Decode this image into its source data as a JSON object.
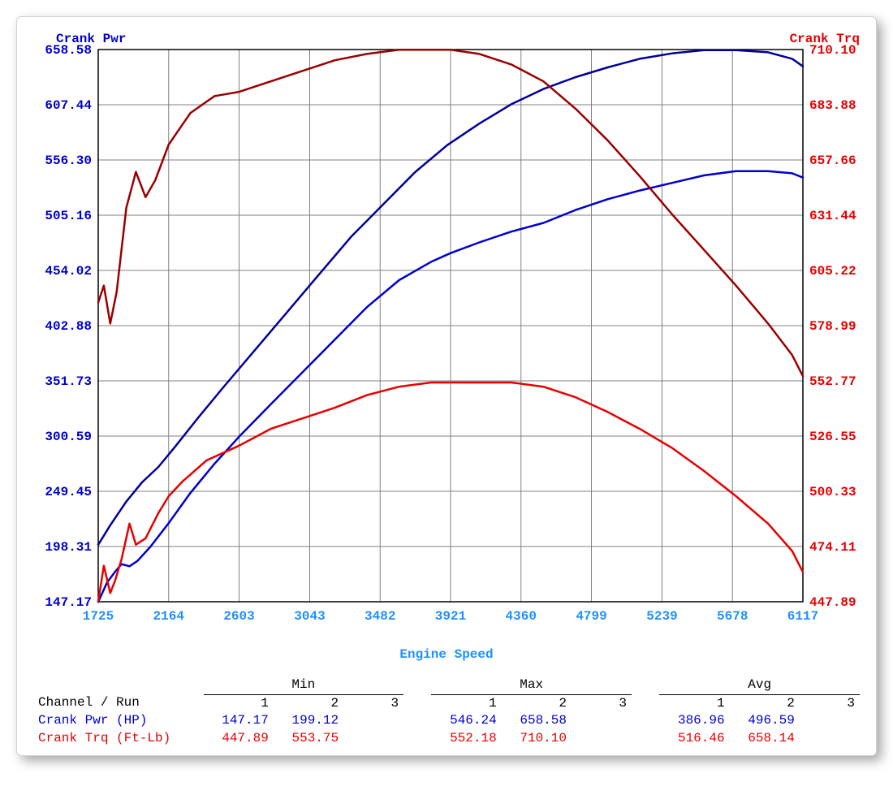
{
  "chart": {
    "background_color": "#ffffff",
    "grid_color": "#808080",
    "plot_border_color": "#000000",
    "font_family": "Courier New, monospace",
    "tick_fontsize": 16,
    "title_fontsize": 16,
    "line_width": 2.5,
    "x_axis": {
      "label": "Engine Speed",
      "color": "#1e90ff",
      "min": 1725,
      "max": 6117,
      "ticks": [
        1725,
        2164,
        2603,
        3043,
        3482,
        3921,
        4360,
        4799,
        5239,
        5678,
        6117
      ]
    },
    "y_left": {
      "label": "Crank Pwr",
      "color": "#0000cc",
      "min": 147.17,
      "max": 658.58,
      "ticks": [
        147.17,
        198.31,
        249.45,
        300.59,
        351.73,
        402.88,
        454.02,
        505.16,
        556.3,
        607.44,
        658.58
      ]
    },
    "y_right": {
      "label": "Crank Trq",
      "color": "#e60000",
      "min": 447.89,
      "max": 710.1,
      "ticks": [
        447.89,
        474.11,
        500.33,
        526.55,
        552.77,
        578.99,
        605.22,
        631.44,
        657.66,
        683.88,
        710.1
      ]
    },
    "series": [
      {
        "name": "Crank Pwr Run 1",
        "axis": "left",
        "color": "#0000cc",
        "points": [
          [
            1725,
            147
          ],
          [
            1780,
            165
          ],
          [
            1830,
            175
          ],
          [
            1870,
            182
          ],
          [
            1920,
            180
          ],
          [
            1970,
            185
          ],
          [
            2050,
            198
          ],
          [
            2164,
            220
          ],
          [
            2300,
            248
          ],
          [
            2450,
            275
          ],
          [
            2603,
            300
          ],
          [
            2800,
            330
          ],
          [
            3000,
            360
          ],
          [
            3200,
            390
          ],
          [
            3400,
            420
          ],
          [
            3600,
            445
          ],
          [
            3800,
            462
          ],
          [
            3921,
            470
          ],
          [
            4100,
            480
          ],
          [
            4300,
            490
          ],
          [
            4500,
            498
          ],
          [
            4700,
            510
          ],
          [
            4900,
            520
          ],
          [
            5100,
            528
          ],
          [
            5300,
            535
          ],
          [
            5500,
            542
          ],
          [
            5700,
            546
          ],
          [
            5900,
            546
          ],
          [
            6050,
            544
          ],
          [
            6117,
            540
          ]
        ]
      },
      {
        "name": "Crank Pwr Run 2",
        "axis": "left",
        "color": "#000099",
        "points": [
          [
            1725,
            200
          ],
          [
            1800,
            218
          ],
          [
            1900,
            240
          ],
          [
            2000,
            258
          ],
          [
            2100,
            272
          ],
          [
            2200,
            290
          ],
          [
            2350,
            318
          ],
          [
            2500,
            345
          ],
          [
            2700,
            380
          ],
          [
            2900,
            415
          ],
          [
            3100,
            450
          ],
          [
            3300,
            485
          ],
          [
            3500,
            515
          ],
          [
            3700,
            545
          ],
          [
            3900,
            570
          ],
          [
            4100,
            590
          ],
          [
            4300,
            608
          ],
          [
            4500,
            622
          ],
          [
            4700,
            633
          ],
          [
            4900,
            642
          ],
          [
            5100,
            650
          ],
          [
            5300,
            655
          ],
          [
            5500,
            658
          ],
          [
            5700,
            658
          ],
          [
            5900,
            656
          ],
          [
            6050,
            650
          ],
          [
            6117,
            643
          ]
        ]
      },
      {
        "name": "Crank Trq Run 1",
        "axis": "right",
        "color": "#e60000",
        "points": [
          [
            1725,
            448
          ],
          [
            1760,
            465
          ],
          [
            1800,
            452
          ],
          [
            1830,
            458
          ],
          [
            1870,
            468
          ],
          [
            1920,
            485
          ],
          [
            1960,
            475
          ],
          [
            2020,
            478
          ],
          [
            2100,
            490
          ],
          [
            2164,
            498
          ],
          [
            2250,
            505
          ],
          [
            2400,
            515
          ],
          [
            2603,
            522
          ],
          [
            2800,
            530
          ],
          [
            3000,
            535
          ],
          [
            3200,
            540
          ],
          [
            3400,
            546
          ],
          [
            3600,
            550
          ],
          [
            3800,
            552
          ],
          [
            3921,
            552
          ],
          [
            4100,
            552
          ],
          [
            4300,
            552
          ],
          [
            4500,
            550
          ],
          [
            4700,
            545
          ],
          [
            4900,
            538
          ],
          [
            5100,
            530
          ],
          [
            5300,
            521
          ],
          [
            5500,
            510
          ],
          [
            5700,
            498
          ],
          [
            5900,
            485
          ],
          [
            6050,
            472
          ],
          [
            6117,
            462
          ]
        ]
      },
      {
        "name": "Crank Trq Run 2",
        "axis": "right",
        "color": "#990000",
        "points": [
          [
            1725,
            590
          ],
          [
            1760,
            598
          ],
          [
            1800,
            580
          ],
          [
            1840,
            595
          ],
          [
            1900,
            635
          ],
          [
            1960,
            652
          ],
          [
            2020,
            640
          ],
          [
            2080,
            648
          ],
          [
            2164,
            665
          ],
          [
            2300,
            680
          ],
          [
            2450,
            688
          ],
          [
            2603,
            690
          ],
          [
            2800,
            695
          ],
          [
            3000,
            700
          ],
          [
            3200,
            705
          ],
          [
            3400,
            708
          ],
          [
            3600,
            710
          ],
          [
            3800,
            710
          ],
          [
            3921,
            710
          ],
          [
            4100,
            708
          ],
          [
            4300,
            703
          ],
          [
            4500,
            695
          ],
          [
            4700,
            682
          ],
          [
            4900,
            667
          ],
          [
            5100,
            650
          ],
          [
            5300,
            632
          ],
          [
            5500,
            615
          ],
          [
            5700,
            598
          ],
          [
            5900,
            580
          ],
          [
            6050,
            565
          ],
          [
            6117,
            555
          ]
        ]
      }
    ]
  },
  "table": {
    "group_headers": [
      "Min",
      "Max",
      "Avg"
    ],
    "sub_headers": [
      "1",
      "2",
      "3"
    ],
    "row_header_label": "Channel / Run",
    "row_header_color": "#000000",
    "rows": [
      {
        "label": "Crank Pwr (HP)",
        "color": "#0000cc",
        "min": [
          "147.17",
          "199.12",
          ""
        ],
        "max": [
          "546.24",
          "658.58",
          ""
        ],
        "avg": [
          "386.96",
          "496.59",
          ""
        ]
      },
      {
        "label": "Crank Trq (Ft-Lb)",
        "color": "#e60000",
        "min": [
          "447.89",
          "553.75",
          ""
        ],
        "max": [
          "552.18",
          "710.10",
          ""
        ],
        "avg": [
          "516.46",
          "658.14",
          ""
        ]
      }
    ]
  }
}
